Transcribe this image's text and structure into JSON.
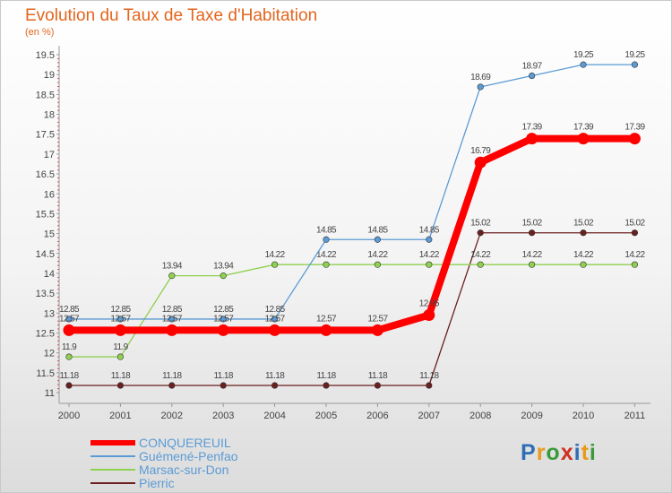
{
  "title": "Evolution du Taux de Taxe d'Habitation",
  "subtitle": "(en %)",
  "brand": {
    "letters": [
      "P",
      "r",
      "o",
      "x",
      "i",
      "t",
      "i"
    ],
    "colors": [
      "#2e6db4",
      "#e89a1b",
      "#3a9a3a",
      "#d0301f",
      "#2e6db4",
      "#e89a1b",
      "#3a9a3a"
    ]
  },
  "chart_data": {
    "type": "line",
    "x": [
      "2000",
      "2001",
      "2002",
      "2003",
      "2004",
      "2005",
      "2006",
      "2007",
      "2008",
      "2009",
      "2010",
      "2011"
    ],
    "ylim": [
      11,
      19.5
    ],
    "yticks": [
      "11",
      "11.5",
      "12",
      "12.5",
      "13",
      "13.5",
      "14",
      "14.5",
      "15",
      "15.5",
      "16",
      "16.5",
      "17",
      "17.5",
      "18",
      "18.5",
      "19",
      "19.5"
    ],
    "grid": false,
    "legend_position": "bottom-left",
    "series": [
      {
        "name": "Pierric",
        "color": "#6b1f1f",
        "values": [
          11.18,
          11.18,
          11.18,
          11.18,
          11.18,
          11.18,
          11.18,
          11.18,
          15.02,
          15.02,
          15.02,
          15.02
        ],
        "labels": [
          "11.18",
          "11.18",
          "11.18",
          "11.18",
          "11.18",
          "11.18",
          "11.18",
          "11.18",
          "15.02",
          "15.02",
          "15.02",
          "15.02"
        ]
      },
      {
        "name": "Marsac-sur-Don",
        "color": "#8fd14f",
        "values": [
          11.9,
          11.9,
          13.94,
          13.94,
          14.22,
          14.22,
          14.22,
          14.22,
          14.22,
          14.22,
          14.22,
          14.22
        ],
        "labels": [
          "11.9",
          "11.9",
          "13.94",
          "13.94",
          "14.22",
          "14.22",
          "14.22",
          "14.22",
          "14.22",
          "14.22",
          "14.22",
          "14.22"
        ]
      },
      {
        "name": "Guémené-Penfao",
        "color": "#5b9bd5",
        "values": [
          12.85,
          12.85,
          12.85,
          12.85,
          12.85,
          14.85,
          14.85,
          14.85,
          18.69,
          18.97,
          19.25,
          19.25
        ],
        "labels": [
          "12.85",
          "12.85",
          "12.85",
          "12.85",
          "12.85",
          "14.85",
          "14.85",
          "14.85",
          "18.69",
          "18.97",
          "19.25",
          "19.25"
        ]
      },
      {
        "name": "CONQUEREUIL",
        "color": "#ff0000",
        "values": [
          12.57,
          12.57,
          12.57,
          12.57,
          12.57,
          12.57,
          12.57,
          12.95,
          16.79,
          17.39,
          17.39,
          17.39
        ],
        "labels": [
          "12.57",
          "12.57",
          "12.57",
          "12.57",
          "12.57",
          "12.57",
          "12.57",
          "12.95",
          "16.79",
          "17.39",
          "17.39",
          "17.39"
        ]
      }
    ],
    "legend": [
      "CONQUEREUIL",
      "Guémené-Penfao",
      "Marsac-sur-Don",
      "Pierric"
    ]
  }
}
